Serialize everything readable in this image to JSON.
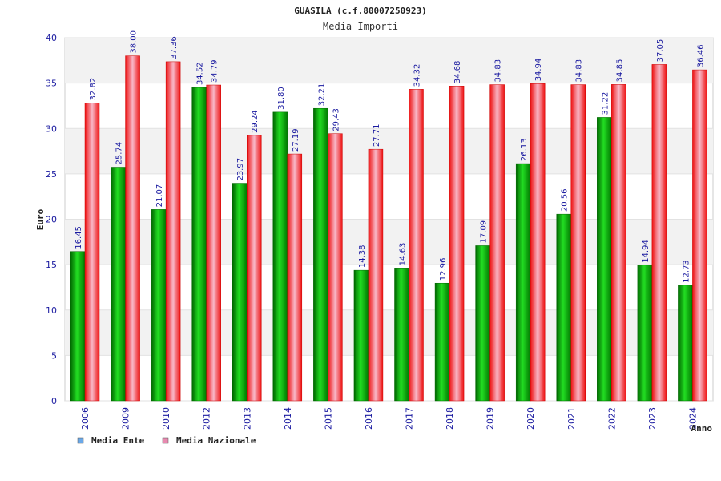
{
  "chart_data": {
    "type": "bar",
    "title": "GUASILA (c.f.80007250923)",
    "subtitle": "Media Importi",
    "xlabel": "Anno",
    "ylabel": "Euro",
    "ylim": [
      0,
      40
    ],
    "y_ticks": [
      "0",
      "5",
      "10",
      "15",
      "20",
      "25",
      "30",
      "35",
      "40"
    ],
    "grid": true,
    "legend_position": "bottom-left",
    "categories": [
      "2006",
      "2009",
      "2010",
      "2012",
      "2013",
      "2014",
      "2015",
      "2016",
      "2017",
      "2018",
      "2019",
      "2020",
      "2021",
      "2022",
      "2023",
      "2024"
    ],
    "series": [
      {
        "name": "Media Ente",
        "color": "#00aa00",
        "legend_color": "#6aa8e8",
        "values": [
          16.45,
          25.74,
          21.07,
          34.52,
          23.97,
          31.8,
          32.21,
          14.38,
          14.63,
          12.96,
          17.09,
          26.13,
          20.56,
          31.22,
          14.94,
          12.73
        ],
        "labels": [
          "16.45",
          "25.74",
          "21.07",
          "34.52",
          "23.97",
          "31.80",
          "32.21",
          "14.38",
          "14.63",
          "12.96",
          "17.09",
          "26.13",
          "20.56",
          "31.22",
          "14.94",
          "12.73"
        ]
      },
      {
        "name": "Media Nazionale",
        "color": "#ee1111",
        "legend_color": "#e88ab0",
        "values": [
          32.82,
          38.0,
          37.36,
          34.79,
          29.24,
          27.19,
          29.43,
          27.71,
          34.32,
          34.68,
          34.83,
          34.94,
          34.83,
          34.85,
          37.05,
          36.46
        ],
        "labels": [
          "32.82",
          "38.00",
          "37.36",
          "34.79",
          "29.24",
          "27.19",
          "29.43",
          "27.71",
          "34.32",
          "34.68",
          "34.83",
          "34.94",
          "34.83",
          "34.85",
          "37.05",
          "36.46"
        ]
      }
    ]
  }
}
